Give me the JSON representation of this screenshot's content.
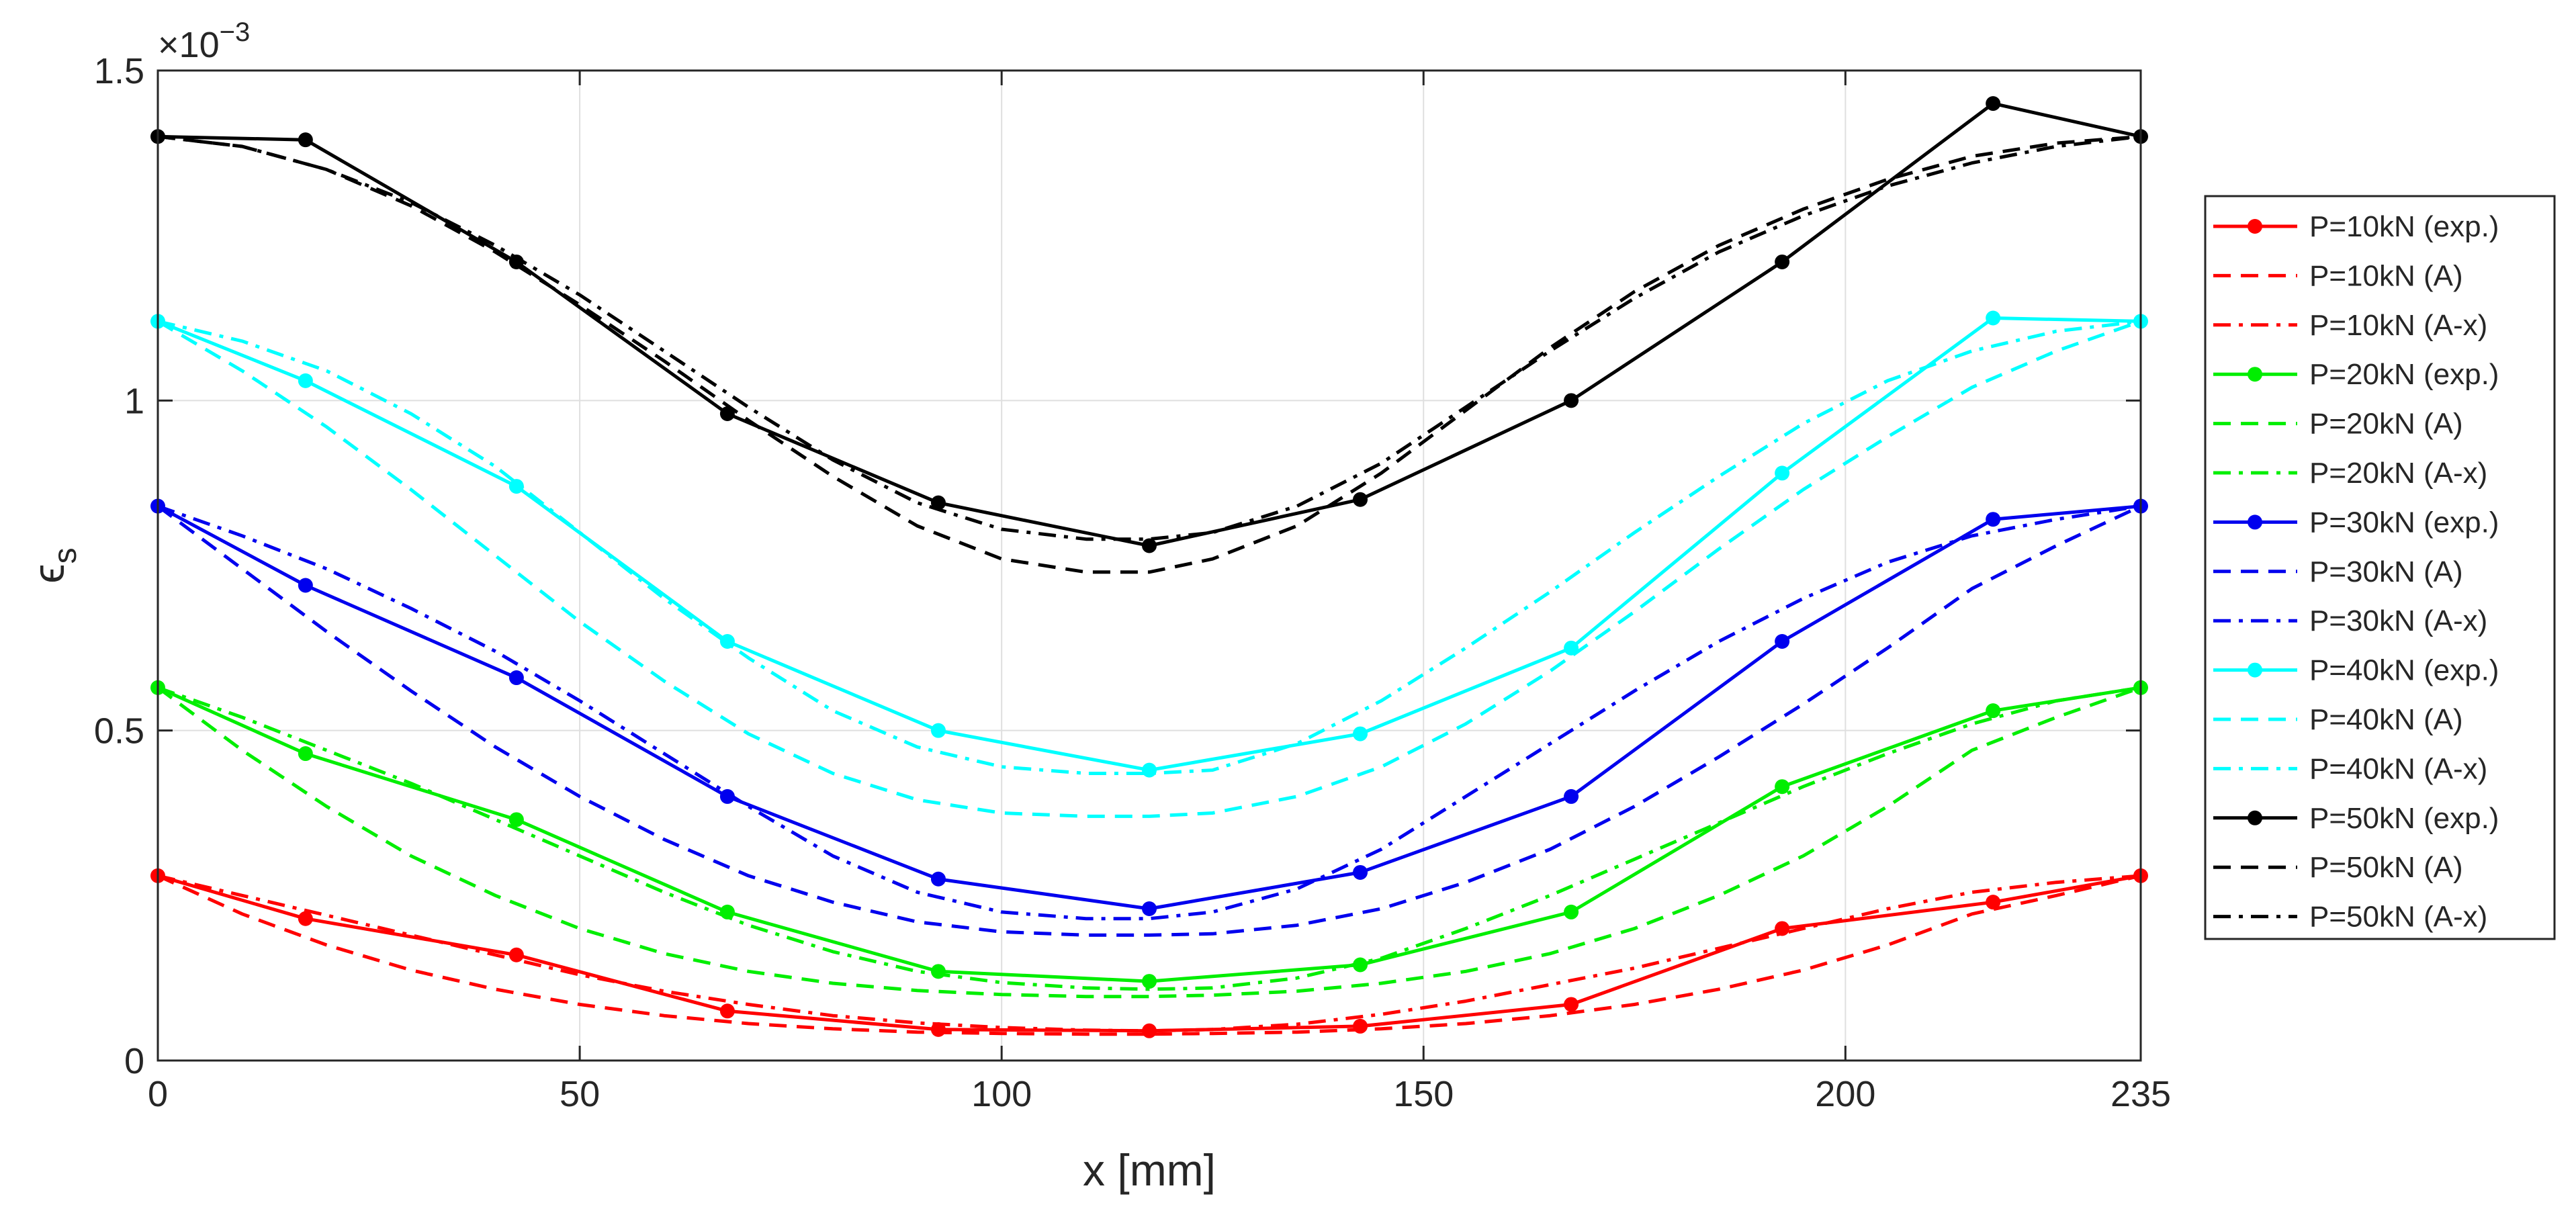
{
  "chart_data": {
    "type": "line",
    "xlabel": "x [mm]",
    "ylabel_symbol": "ϵ",
    "ylabel_subscript": "s",
    "exponent_base": "×10",
    "exponent_power": "−3",
    "xlim": [
      0,
      235
    ],
    "ylim": [
      0,
      1.5
    ],
    "xticks": [
      0,
      50,
      100,
      150,
      200,
      235
    ],
    "xtick_labels": [
      "0",
      "50",
      "100",
      "150",
      "200",
      "235"
    ],
    "yticks": [
      0,
      0.5,
      1,
      1.5
    ],
    "ytick_labels": [
      "0",
      "0.5",
      "1",
      "1.5"
    ],
    "y_units_note": "y values in units of 10^-3",
    "grid": true,
    "legend_position": "outside-right",
    "exp_x": [
      0,
      17.5,
      42.5,
      67.5,
      92.5,
      117.5,
      142.5,
      167.5,
      192.5,
      217.5,
      235
    ],
    "model_x": [
      0,
      10,
      20,
      30,
      40,
      50,
      60,
      70,
      80,
      90,
      100,
      110,
      117.5,
      125,
      135,
      145,
      155,
      165,
      175,
      185,
      195,
      205,
      215,
      225,
      235
    ],
    "series": [
      {
        "name": "P=10kN (exp.)",
        "color": "#ff0000",
        "style": "solid",
        "markers": true,
        "x_ref": "exp_x",
        "values": [
          0.28,
          0.215,
          0.16,
          0.075,
          0.047,
          0.045,
          0.052,
          0.085,
          0.2,
          0.24,
          0.28
        ]
      },
      {
        "name": "P=10kN (A)",
        "color": "#ff0000",
        "style": "dashed",
        "markers": false,
        "x_ref": "model_x",
        "values": [
          0.28,
          0.222,
          0.175,
          0.137,
          0.108,
          0.085,
          0.068,
          0.056,
          0.048,
          0.043,
          0.041,
          0.04,
          0.04,
          0.041,
          0.043,
          0.048,
          0.056,
          0.068,
          0.085,
          0.108,
          0.137,
          0.175,
          0.222,
          0.25,
          0.28
        ]
      },
      {
        "name": "P=10kN (A-x)",
        "color": "#ff0000",
        "style": "dashdot",
        "markers": false,
        "x_ref": "model_x",
        "values": [
          0.28,
          0.25,
          0.22,
          0.19,
          0.16,
          0.13,
          0.105,
          0.085,
          0.068,
          0.057,
          0.05,
          0.046,
          0.045,
          0.047,
          0.055,
          0.07,
          0.09,
          0.115,
          0.14,
          0.17,
          0.2,
          0.23,
          0.255,
          0.27,
          0.28
        ]
      },
      {
        "name": "P=20kN (exp.)",
        "color": "#00ee00",
        "style": "solid",
        "markers": true,
        "x_ref": "exp_x",
        "values": [
          0.565,
          0.465,
          0.365,
          0.225,
          0.135,
          0.12,
          0.145,
          0.225,
          0.415,
          0.53,
          0.565
        ]
      },
      {
        "name": "P=20kN (A)",
        "color": "#00ee00",
        "style": "dashed",
        "markers": false,
        "x_ref": "model_x",
        "values": [
          0.565,
          0.47,
          0.385,
          0.31,
          0.25,
          0.2,
          0.162,
          0.135,
          0.117,
          0.106,
          0.1,
          0.097,
          0.097,
          0.099,
          0.105,
          0.117,
          0.135,
          0.162,
          0.2,
          0.25,
          0.31,
          0.385,
          0.47,
          0.52,
          0.565
        ]
      },
      {
        "name": "P=20kN (A-x)",
        "color": "#00ee00",
        "style": "dashdot",
        "markers": false,
        "x_ref": "model_x",
        "values": [
          0.565,
          0.52,
          0.47,
          0.42,
          0.365,
          0.31,
          0.255,
          0.205,
          0.165,
          0.135,
          0.118,
          0.11,
          0.108,
          0.11,
          0.125,
          0.155,
          0.2,
          0.25,
          0.305,
          0.36,
          0.415,
          0.465,
          0.51,
          0.545,
          0.565
        ]
      },
      {
        "name": "P=30kN (exp.)",
        "color": "#0000ee",
        "style": "solid",
        "markers": true,
        "x_ref": "exp_x",
        "values": [
          0.84,
          0.72,
          0.58,
          0.4,
          0.275,
          0.23,
          0.285,
          0.4,
          0.635,
          0.82,
          0.84
        ]
      },
      {
        "name": "P=30kN (A)",
        "color": "#0000ee",
        "style": "dashed",
        "markers": false,
        "x_ref": "model_x",
        "values": [
          0.84,
          0.745,
          0.65,
          0.56,
          0.475,
          0.4,
          0.335,
          0.28,
          0.24,
          0.21,
          0.195,
          0.19,
          0.19,
          0.192,
          0.205,
          0.23,
          0.27,
          0.32,
          0.385,
          0.46,
          0.54,
          0.625,
          0.715,
          0.78,
          0.84
        ]
      },
      {
        "name": "P=30kN (A-x)",
        "color": "#0000ee",
        "style": "dashdot",
        "markers": false,
        "x_ref": "model_x",
        "values": [
          0.84,
          0.795,
          0.745,
          0.685,
          0.62,
          0.545,
          0.465,
          0.385,
          0.31,
          0.255,
          0.225,
          0.215,
          0.215,
          0.225,
          0.26,
          0.32,
          0.4,
          0.48,
          0.56,
          0.635,
          0.7,
          0.755,
          0.795,
          0.82,
          0.84
        ]
      },
      {
        "name": "P=40kN (exp.)",
        "color": "#00ffff",
        "style": "solid",
        "markers": true,
        "x_ref": "exp_x",
        "values": [
          1.12,
          1.03,
          0.87,
          0.635,
          0.5,
          0.44,
          0.495,
          0.625,
          0.89,
          1.125,
          1.12
        ]
      },
      {
        "name": "P=40kN (A)",
        "color": "#00ffff",
        "style": "dashed",
        "markers": false,
        "x_ref": "model_x",
        "values": [
          1.12,
          1.045,
          0.96,
          0.865,
          0.765,
          0.665,
          0.575,
          0.495,
          0.435,
          0.395,
          0.375,
          0.37,
          0.37,
          0.375,
          0.4,
          0.445,
          0.51,
          0.59,
          0.68,
          0.775,
          0.865,
          0.945,
          1.02,
          1.075,
          1.12
        ]
      },
      {
        "name": "P=40kN (A-x)",
        "color": "#00ffff",
        "style": "dashdot",
        "markers": false,
        "x_ref": "model_x",
        "values": [
          1.12,
          1.09,
          1.045,
          0.98,
          0.9,
          0.8,
          0.7,
          0.61,
          0.53,
          0.475,
          0.445,
          0.435,
          0.435,
          0.44,
          0.48,
          0.545,
          0.625,
          0.71,
          0.8,
          0.885,
          0.965,
          1.03,
          1.075,
          1.105,
          1.12
        ]
      },
      {
        "name": "P=50kN (exp.)",
        "color": "#000000",
        "style": "solid",
        "markers": true,
        "x_ref": "exp_x",
        "values": [
          1.4,
          1.395,
          1.21,
          0.98,
          0.845,
          0.78,
          0.85,
          1.0,
          1.21,
          1.45,
          1.4
        ]
      },
      {
        "name": "P=50kN (A)",
        "color": "#000000",
        "style": "dashed",
        "markers": false,
        "x_ref": "model_x",
        "values": [
          1.4,
          1.385,
          1.35,
          1.295,
          1.225,
          1.145,
          1.06,
          0.97,
          0.885,
          0.81,
          0.76,
          0.74,
          0.74,
          0.76,
          0.81,
          0.89,
          0.985,
          1.08,
          1.165,
          1.235,
          1.29,
          1.335,
          1.37,
          1.39,
          1.4
        ]
      },
      {
        "name": "P=50kN (A-x)",
        "color": "#000000",
        "style": "dashdot",
        "markers": false,
        "x_ref": "model_x",
        "values": [
          1.4,
          1.385,
          1.35,
          1.3,
          1.235,
          1.16,
          1.075,
          0.99,
          0.91,
          0.845,
          0.805,
          0.79,
          0.79,
          0.8,
          0.84,
          0.905,
          0.99,
          1.075,
          1.155,
          1.225,
          1.28,
          1.325,
          1.36,
          1.385,
          1.4
        ]
      }
    ]
  }
}
